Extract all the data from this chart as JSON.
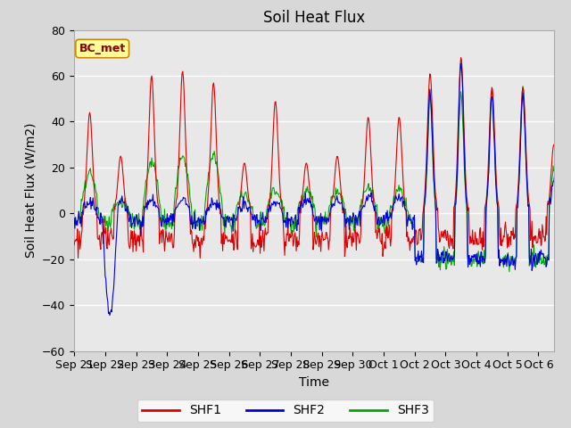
{
  "title": "Soil Heat Flux",
  "xlabel": "Time",
  "ylabel": "Soil Heat Flux (W/m2)",
  "ylim": [
    -60,
    80
  ],
  "yticks": [
    -60,
    -40,
    -20,
    0,
    20,
    40,
    60,
    80
  ],
  "annotation": "BC_met",
  "shf1_color": "#dd0000",
  "shf2_color": "#0000dd",
  "shf3_color": "#00aa00",
  "fig_bg_color": "#d8d8d8",
  "plot_bg_color": "#e8e8e8",
  "title_fontsize": 12,
  "label_fontsize": 10,
  "tick_fontsize": 9,
  "tick_labels": [
    "Sep 21",
    "Sep 22",
    "Sep 23",
    "Sep 24",
    "Sep 25",
    "Sep 26",
    "Sep 27",
    "Sep 28",
    "Sep 29",
    "Sep 30",
    "Oct 1",
    "Oct 2",
    "Oct 3",
    "Oct 4",
    "Oct 5",
    "Oct 6"
  ]
}
